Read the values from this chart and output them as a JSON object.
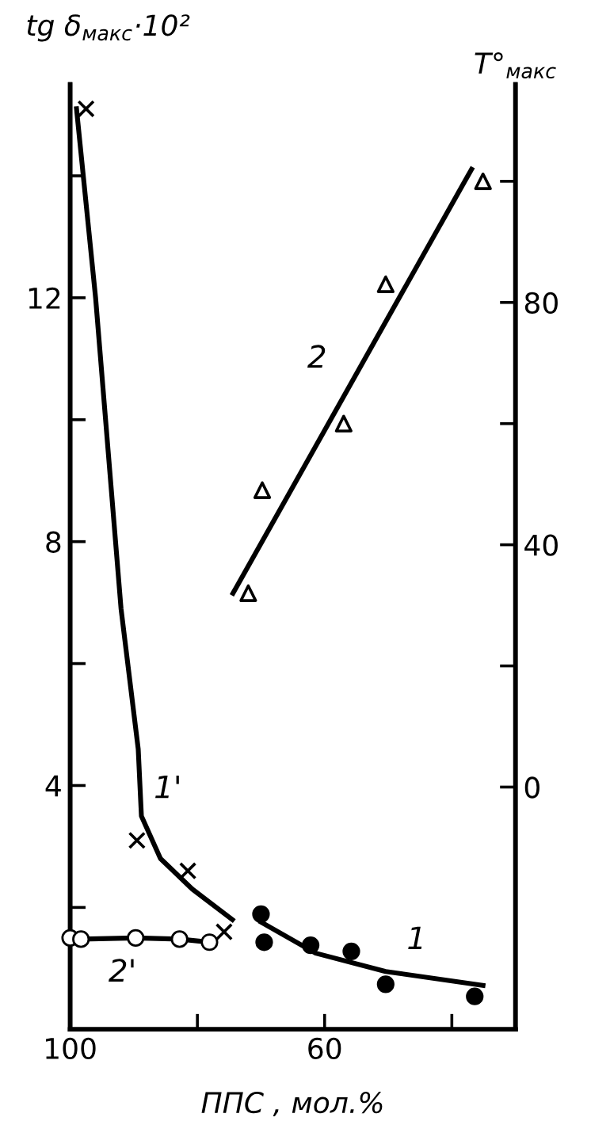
{
  "chart_data": {
    "type": "scatter",
    "xlabel": "ППС , мол.%",
    "ylabel": "tg δ$_{макс}$·10²",
    "y2label": "T°$_{макс}$",
    "xlim": [
      100,
      30
    ],
    "xticks": [
      100,
      {
        "value": 80,
        "label": null
      },
      60,
      {
        "value": 40,
        "label": null
      }
    ],
    "ylim": [
      0,
      15.5
    ],
    "yticks": [
      {
        "value": 2,
        "label": null
      },
      4,
      {
        "value": 6,
        "label": null
      },
      8,
      {
        "value": 10,
        "label": null
      },
      12,
      {
        "value": 14,
        "label": null
      }
    ],
    "y2lim": [
      -40,
      116
    ],
    "y2ticks": [
      0,
      {
        "value": 20,
        "label": null
      },
      40,
      {
        "value": 60,
        "label": null
      },
      80,
      {
        "value": 100,
        "label": null
      }
    ],
    "grid": false,
    "legend": false,
    "series": [
      {
        "name": "1'",
        "type": "line",
        "marker": "none",
        "color": "#000000",
        "x": [
          99,
          96,
          92,
          89.3,
          88.8,
          85.8,
          80.8,
          74.5
        ],
        "values": [
          15.1,
          12.0,
          6.9,
          4.6,
          3.5,
          2.8,
          2.3,
          1.8
        ]
      },
      {
        "marker": "cross",
        "color": "#000000",
        "x": [
          97.5,
          89.5,
          81.5,
          75.8
        ],
        "values": [
          15.1,
          3.1,
          2.6,
          1.6
        ]
      },
      {
        "name": "2'",
        "type": "line",
        "marker": "circle",
        "color": "#000000",
        "x": [
          100,
          98.3,
          89.7,
          82.8,
          78.1
        ],
        "values": [
          1.5,
          1.48,
          1.5,
          1.48,
          1.43
        ]
      },
      {
        "name": "1",
        "type": "line",
        "marker": "none",
        "color": "#000000",
        "x": [
          70,
          61.4,
          50.4,
          35.1
        ],
        "values": [
          1.76,
          1.25,
          0.95,
          0.72
        ]
      },
      {
        "marker": "circle",
        "color": "#000000",
        "x": [
          70.0,
          69.5,
          62.2,
          55.8,
          50.4,
          36.4
        ],
        "values": [
          1.89,
          1.43,
          1.38,
          1.28,
          0.74,
          0.54
        ]
      },
      {
        "name": "2",
        "type": "line",
        "marker": "none",
        "axis": "y2",
        "color": "#000000",
        "x": [
          74.4,
          36.9
        ],
        "values": [
          32,
          102
        ]
      },
      {
        "marker": "triangle",
        "axis": "y2",
        "color": "#000000",
        "x": [
          72.0,
          69.8,
          57.0,
          50.4,
          35.1
        ],
        "values": [
          32,
          49,
          60,
          83,
          100
        ]
      }
    ]
  }
}
